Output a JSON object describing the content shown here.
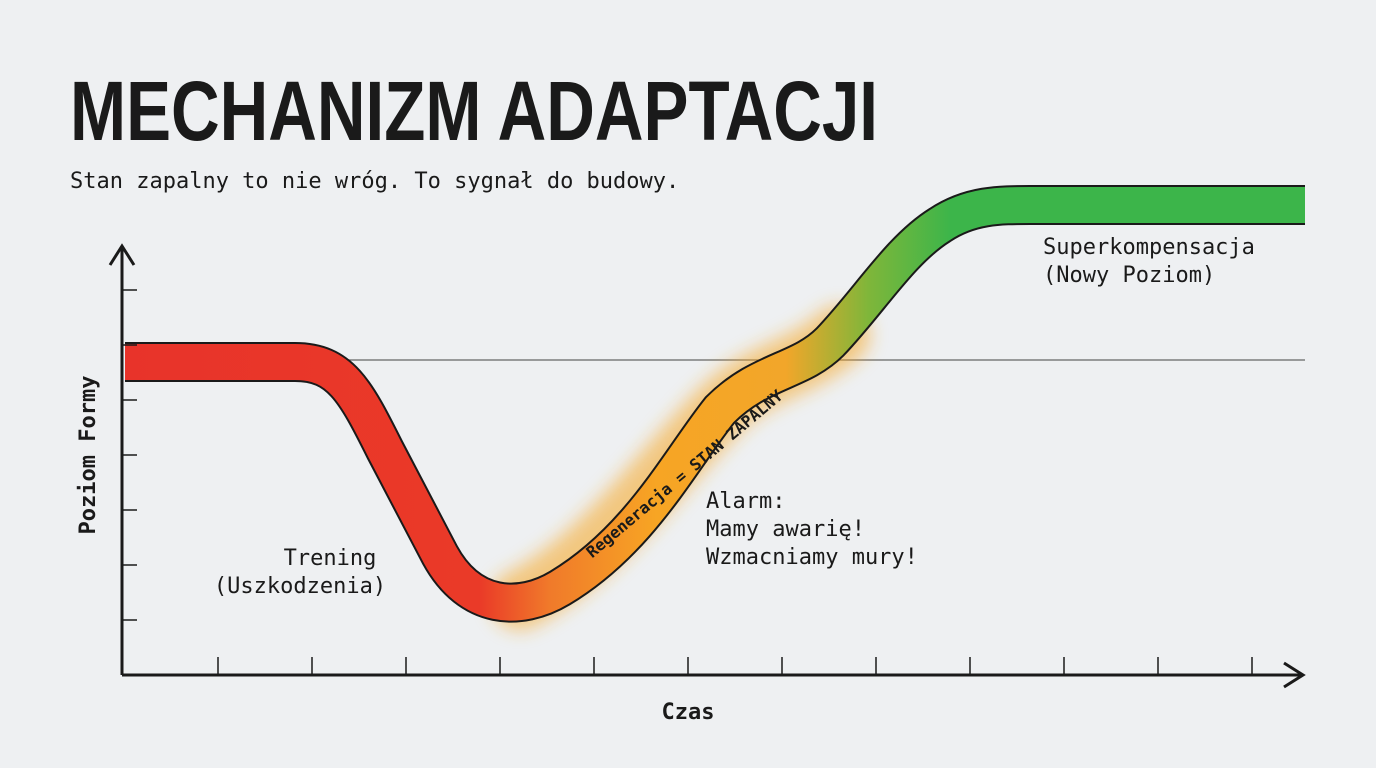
{
  "header": {
    "title": "MECHANIZM ADAPTACJI",
    "subtitle": "Stan zapalny to nie wróg. To sygnał do budowy."
  },
  "axes": {
    "y_label": "Poziom Formy",
    "x_label": "Czas"
  },
  "annotations": {
    "training": [
      "Trening",
      "(Uszkodzenia)"
    ],
    "regeneration": "Regeneracja = STAN ZAPALNY",
    "alarm": [
      "Alarm:",
      "Mamy awarię!",
      "Wzmacniamy mury!"
    ],
    "supercompensation": [
      "Superkompensacja",
      "(Nowy Poziom)"
    ]
  }
}
